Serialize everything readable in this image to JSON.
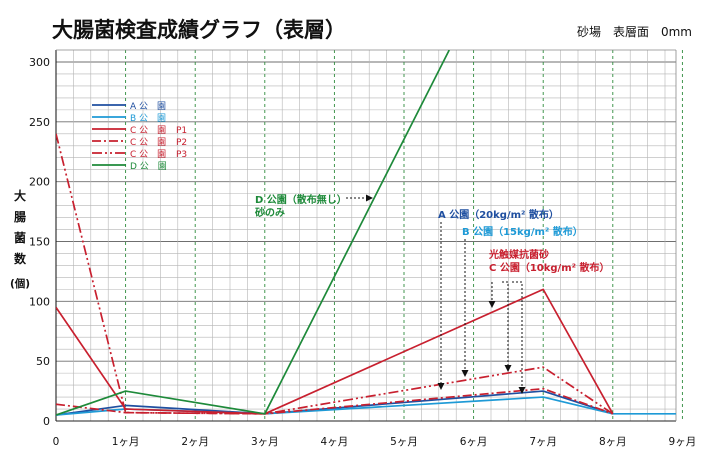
{
  "chart_data": {
    "type": "line",
    "title": "大腸菌検査成績グラフ（表層）",
    "subtitle": "砂場　表層面　0mm",
    "ylabel": [
      "大",
      "腸",
      "菌",
      "数",
      "(個)"
    ],
    "xlabel": "",
    "x_ticks": [
      {
        "value": 0,
        "label": "0"
      },
      {
        "value": 1,
        "label": "1ヶ月"
      },
      {
        "value": 2,
        "label": "2ヶ月"
      },
      {
        "value": 3,
        "label": "3ヶ月"
      },
      {
        "value": 4,
        "label": "4ヶ月"
      },
      {
        "value": 5,
        "label": "5ヶ月"
      },
      {
        "value": 6,
        "label": "6ヶ月"
      },
      {
        "value": 7,
        "label": "7ヶ月"
      },
      {
        "value": 8,
        "label": "8ヶ月"
      },
      {
        "value": 9,
        "label": "9ヶ月"
      }
    ],
    "y_ticks": [
      0,
      50,
      100,
      150,
      200,
      250,
      300
    ],
    "xlim": [
      0,
      9
    ],
    "ylim": [
      0,
      305
    ],
    "grid": true,
    "legend_position": "top-left",
    "series": [
      {
        "name": "A 公　園",
        "legend_detail": "",
        "color": "#1f4fa0",
        "dash": "solid",
        "x": [
          0,
          1,
          3,
          7,
          8
        ],
        "y": [
          5,
          13,
          6,
          25,
          6
        ]
      },
      {
        "name": "B 公　園",
        "legend_detail": "",
        "color": "#1e9ad6",
        "dash": "solid",
        "x": [
          0,
          1,
          3,
          7,
          8,
          9
        ],
        "y": [
          5,
          10,
          6,
          20,
          6,
          6
        ]
      },
      {
        "name": "C 公　園",
        "legend_detail": "P1",
        "color": "#c8202f",
        "dash": "solid",
        "x": [
          0,
          1,
          3,
          7,
          8
        ],
        "y": [
          95,
          10,
          6,
          110,
          6
        ]
      },
      {
        "name": "C 公　園",
        "legend_detail": "P2",
        "color": "#c8202f",
        "dash": "dashdot",
        "x": [
          0,
          1,
          3,
          7,
          8
        ],
        "y": [
          14,
          7,
          6,
          27,
          6
        ]
      },
      {
        "name": "C 公　園",
        "legend_detail": "P3",
        "color": "#c8202f",
        "dash": "dashdotdot",
        "x": [
          0,
          1,
          3,
          7,
          8
        ],
        "y": [
          240,
          7,
          6,
          45,
          6
        ]
      },
      {
        "name": "D 公　園",
        "legend_detail": "",
        "color": "#1e8a3a",
        "dash": "solid",
        "x": [
          0,
          1,
          3,
          5.65
        ],
        "y": [
          5,
          25,
          6,
          310
        ]
      }
    ],
    "annotations": [
      {
        "id": "d",
        "color": "#1e8a3a",
        "lines": [
          "D 公園（散布無し）",
          "砂のみ"
        ]
      },
      {
        "id": "a",
        "color": "#1f4fa0",
        "lines": [
          "A 公園（20kg/m² 散布）"
        ]
      },
      {
        "id": "b",
        "color": "#1e9ad6",
        "lines": [
          "B 公園（15kg/m² 散布）"
        ]
      },
      {
        "id": "c",
        "color": "#c8202f",
        "lines": [
          "光触媒抗菌砂",
          "C 公園（10kg/m² 散布）"
        ]
      }
    ]
  }
}
